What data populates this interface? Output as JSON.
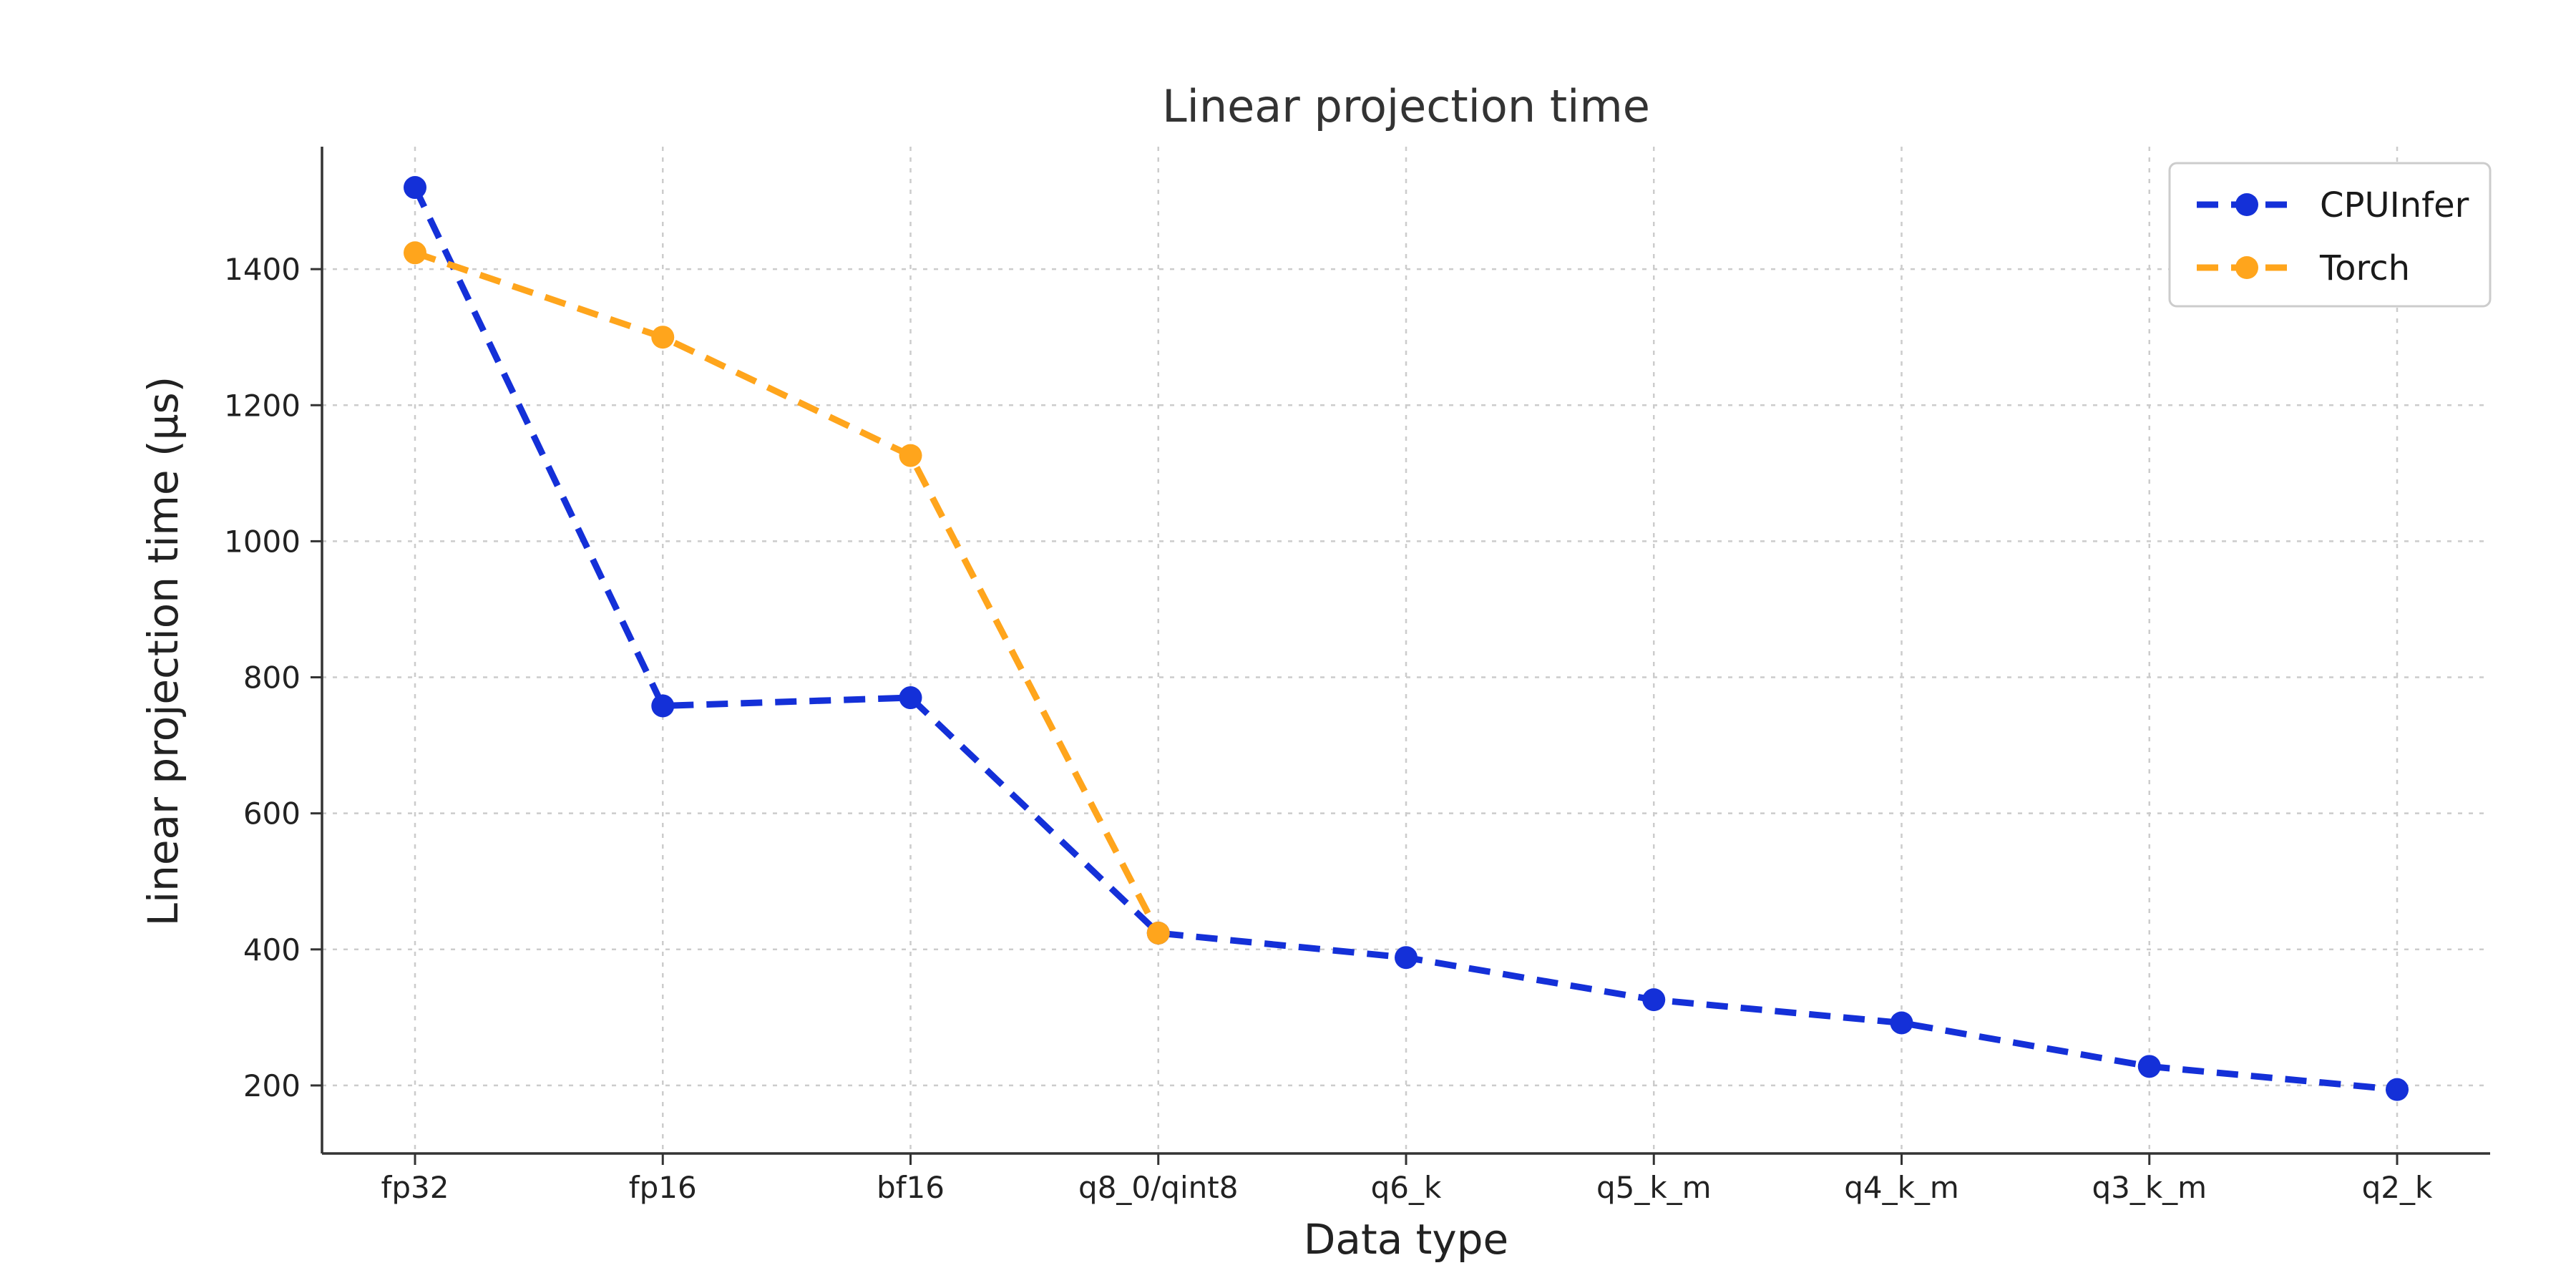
{
  "figure": {
    "background": "#ffffff"
  },
  "chart_data": {
    "type": "line",
    "title": "Linear projection time",
    "xlabel": "Data type",
    "ylabel": "Linear projection time (µs)",
    "categories": [
      "fp32",
      "fp16",
      "bf16",
      "q8_0/qint8",
      "q6_k",
      "q5_k_m",
      "q4_k_m",
      "q3_k_m",
      "q2_k"
    ],
    "series": [
      {
        "name": "CPUInfer",
        "color": "#1430d8",
        "linestyle": "dashed",
        "marker": "circle",
        "values": [
          1520,
          758,
          770,
          424,
          388,
          326,
          292,
          228,
          194
        ]
      },
      {
        "name": "Torch",
        "color": "#ffa51c",
        "linestyle": "dashed",
        "marker": "circle",
        "values": [
          1424,
          1300,
          1126,
          424
        ]
      }
    ],
    "ylim": [
      100,
      1580
    ],
    "yticks": [
      200,
      400,
      600,
      800,
      1000,
      1200,
      1400
    ],
    "grid": true,
    "grid_color": "#cccccc",
    "axis_color": "#333333",
    "tick_label_color": "#222222",
    "legend_position": "upper right",
    "legend_border_color": "#cccccc"
  }
}
